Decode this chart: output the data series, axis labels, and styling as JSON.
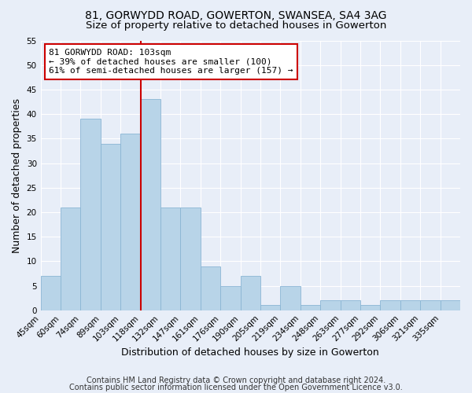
{
  "title1": "81, GORWYDD ROAD, GOWERTON, SWANSEA, SA4 3AG",
  "title2": "Size of property relative to detached houses in Gowerton",
  "xlabel": "Distribution of detached houses by size in Gowerton",
  "ylabel": "Number of detached properties",
  "bar_labels": [
    "45sqm",
    "60sqm",
    "74sqm",
    "89sqm",
    "103sqm",
    "118sqm",
    "132sqm",
    "147sqm",
    "161sqm",
    "176sqm",
    "190sqm",
    "205sqm",
    "219sqm",
    "234sqm",
    "248sqm",
    "263sqm",
    "277sqm",
    "292sqm",
    "306sqm",
    "321sqm",
    "335sqm"
  ],
  "bar_values": [
    7,
    21,
    39,
    34,
    36,
    43,
    21,
    21,
    9,
    5,
    7,
    1,
    5,
    1,
    2,
    2,
    1,
    2,
    2,
    2,
    2
  ],
  "bar_color": "#b8d4e8",
  "bar_edge_color": "#8ab5d4",
  "vline_x": 5,
  "vline_color": "#cc0000",
  "ylim": [
    0,
    55
  ],
  "yticks": [
    0,
    5,
    10,
    15,
    20,
    25,
    30,
    35,
    40,
    45,
    50,
    55
  ],
  "annotation_title": "81 GORWYDD ROAD: 103sqm",
  "annotation_line1": "← 39% of detached houses are smaller (100)",
  "annotation_line2": "61% of semi-detached houses are larger (157) →",
  "annotation_box_color": "#ffffff",
  "annotation_box_edge": "#cc0000",
  "footer1": "Contains HM Land Registry data © Crown copyright and database right 2024.",
  "footer2": "Contains public sector information licensed under the Open Government Licence v3.0.",
  "background_color": "#e8eef8",
  "title_fontsize": 10,
  "subtitle_fontsize": 9.5,
  "axis_label_fontsize": 9,
  "tick_fontsize": 7.5,
  "annotation_fontsize": 8,
  "footer_fontsize": 7
}
